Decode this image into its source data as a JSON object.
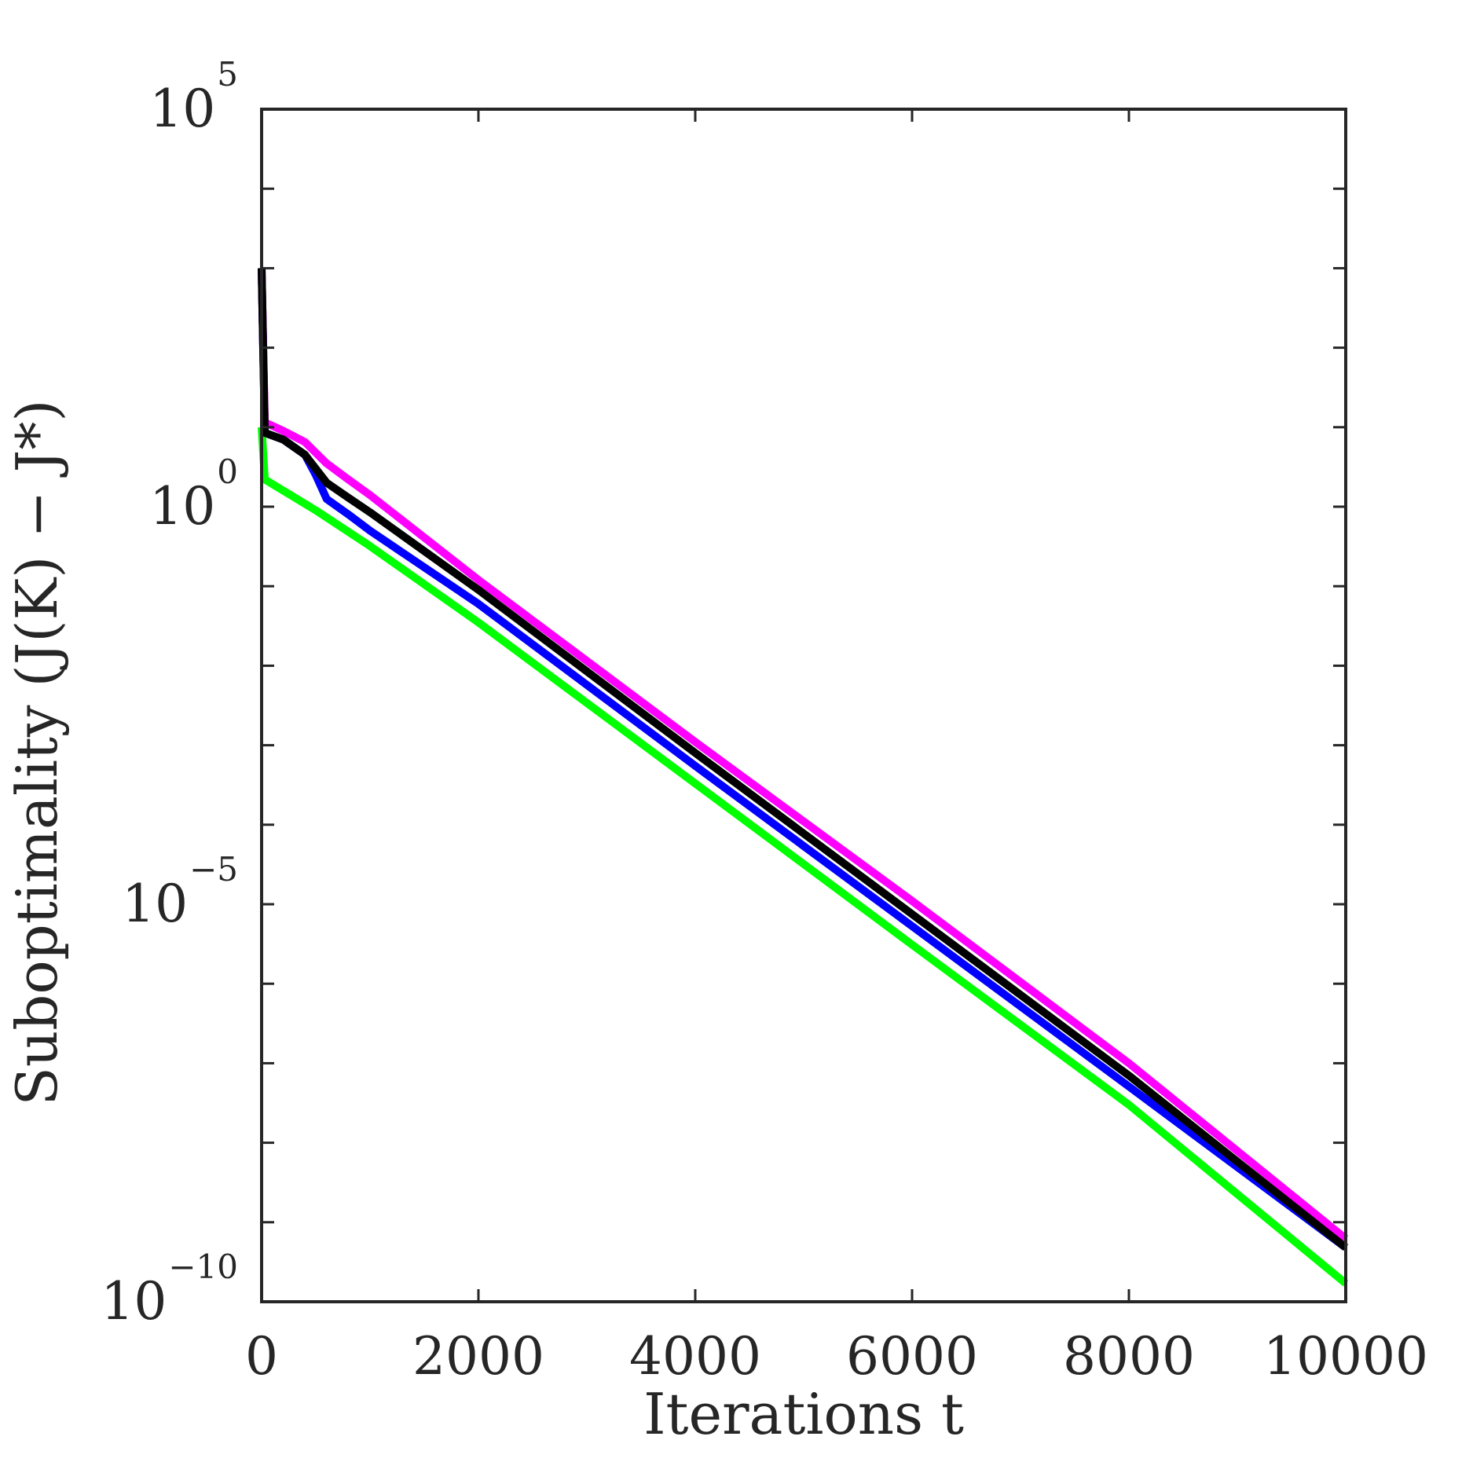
{
  "chart_data": {
    "type": "line",
    "xlabel": "Iterations t",
    "ylabel": "Suboptimality (J(K) − J*)",
    "xlim": [
      0,
      10000
    ],
    "ylim": [
      1e-10,
      100000.0
    ],
    "yscale": "log",
    "x_ticks": [
      {
        "value": 0,
        "label": "0"
      },
      {
        "value": 2000,
        "label": "2000"
      },
      {
        "value": 4000,
        "label": "4000"
      },
      {
        "value": 6000,
        "label": "6000"
      },
      {
        "value": 8000,
        "label": "8000"
      },
      {
        "value": 10000,
        "label": "10000"
      }
    ],
    "y_ticks": [
      {
        "value": 100000.0,
        "base": "10",
        "exp": "5"
      },
      {
        "value": 1.0,
        "base": "10",
        "exp": "0"
      },
      {
        "value": 1e-05,
        "base": "10",
        "exp": "−5"
      },
      {
        "value": 1e-10,
        "base": "10",
        "exp": "−10"
      }
    ],
    "grid": false,
    "series": [
      {
        "color": "#0000ff",
        "points": [
          [
            0,
            1000
          ],
          [
            30,
            8.5
          ],
          [
            200,
            7
          ],
          [
            400,
            4.5
          ],
          [
            500,
            2.5
          ],
          [
            600,
            1.25
          ],
          [
            800,
            0.8
          ],
          [
            1000,
            0.5
          ],
          [
            2000,
            0.06
          ],
          [
            4000,
            0.00055
          ],
          [
            6000,
            5.3e-06
          ],
          [
            8000,
            5.1e-08
          ],
          [
            10000,
            4.8e-10
          ]
        ]
      },
      {
        "color": "#00ff00",
        "points": [
          [
            0,
            10
          ],
          [
            30,
            2.2
          ],
          [
            500,
            0.9
          ],
          [
            1000,
            0.32
          ],
          [
            2000,
            0.035
          ],
          [
            4000,
            0.00033
          ],
          [
            6000,
            3.1e-06
          ],
          [
            8000,
            3e-08
          ],
          [
            10000,
            1.7e-10
          ]
        ]
      },
      {
        "color": "#ff00ff",
        "points": [
          [
            0,
            1000
          ],
          [
            30,
            11.5
          ],
          [
            200,
            9
          ],
          [
            400,
            6.5
          ],
          [
            600,
            3.5
          ],
          [
            800,
            2.2
          ],
          [
            1000,
            1.4
          ],
          [
            2000,
            0.12
          ],
          [
            4000,
            0.0011
          ],
          [
            6000,
            1.1e-05
          ],
          [
            8000,
            1e-07
          ],
          [
            10000,
            6.2e-10
          ]
        ]
      },
      {
        "color": "#000000",
        "points": [
          [
            0,
            1000
          ],
          [
            30,
            8.5
          ],
          [
            200,
            7
          ],
          [
            400,
            4.5
          ],
          [
            500,
            3
          ],
          [
            600,
            2.0
          ],
          [
            800,
            1.3
          ],
          [
            1000,
            0.85
          ],
          [
            2000,
            0.09
          ],
          [
            4000,
            0.0008
          ],
          [
            6000,
            7.5e-06
          ],
          [
            8000,
            7e-08
          ],
          [
            10000,
            4.8e-10
          ]
        ]
      }
    ]
  }
}
